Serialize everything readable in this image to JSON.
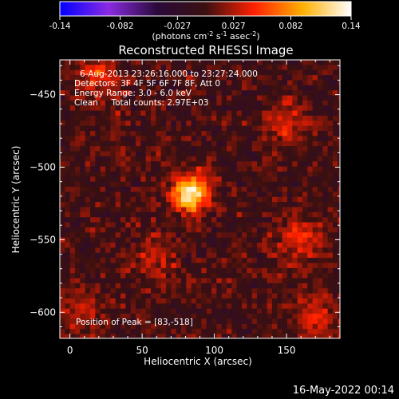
{
  "colorbar": {
    "ticks": [
      "-0.14",
      "-0.082",
      "-0.027",
      "0.027",
      "0.082",
      "0.14"
    ],
    "tick_values": [
      -0.14,
      -0.082,
      -0.027,
      0.027,
      0.082,
      0.14
    ],
    "range": [
      -0.14,
      0.14
    ],
    "unit_label": "(photons cm",
    "unit_sup1": "-2",
    "unit_mid": " s",
    "unit_sup2": "-1",
    "unit_mid2": " asec",
    "unit_sup3": "-2",
    "unit_end": ")",
    "colormap": [
      "#0000ff",
      "#8a2be2",
      "#2a0a3a",
      "#3a1010",
      "#ff2000",
      "#ffb000",
      "#ffffff"
    ]
  },
  "chart_data": {
    "type": "heatmap",
    "title": "Reconstructed RHESSI Image",
    "xlabel": "Heliocentric X (arcsec)",
    "ylabel": "Heliocentric Y (arcsec)",
    "xlim": [
      -7,
      187
    ],
    "ylim": [
      -618,
      -426
    ],
    "xticks": [
      0,
      50,
      100,
      150
    ],
    "yticks": [
      -450,
      -500,
      -550,
      -600
    ],
    "annotations": [
      "6-Aug-2013 23:26:16.000 to 23:27:24.000",
      "Detectors: 3F 4F 5F 6F 7F 8F, Att 0",
      "Energy Range: 3.0 - 6.0 keV",
      "Clean     Total counts: 2.97E+03"
    ],
    "peak_label": "Position of Peak = [83,-518]",
    "peak": {
      "x": 83,
      "y": -518,
      "value": 0.14
    },
    "secondary_sources": [
      {
        "x": 20,
        "y": -438,
        "value": 0.05
      },
      {
        "x": 160,
        "y": -548,
        "value": 0.045
      },
      {
        "x": 170,
        "y": -605,
        "value": 0.04
      },
      {
        "x": 150,
        "y": -470,
        "value": 0.035
      },
      {
        "x": 10,
        "y": -600,
        "value": 0.03
      },
      {
        "x": 60,
        "y": -565,
        "value": 0.03
      }
    ]
  },
  "footer": {
    "date": "16-May-2022 00:14"
  }
}
